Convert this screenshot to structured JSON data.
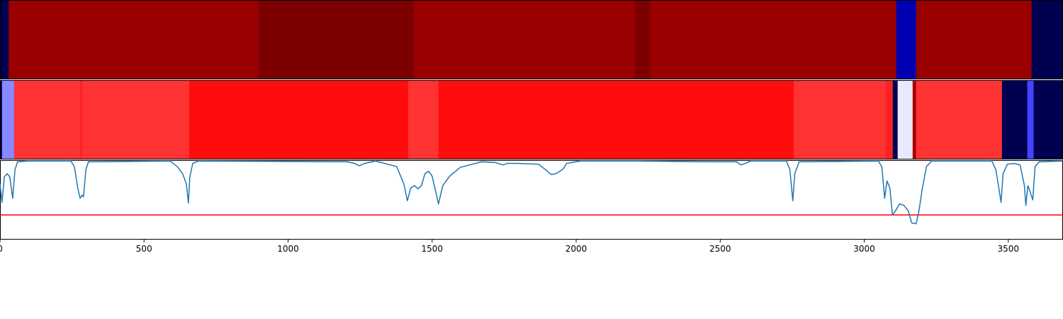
{
  "chart_data": [
    {
      "type": "strip",
      "xlim": [
        0,
        3690
      ],
      "bins": [
        0,
        30,
        898,
        1436,
        2204,
        2258,
        3111,
        3180,
        3581,
        3690
      ],
      "colors": [
        "#000050",
        "#9a0000",
        "#7c0000",
        "#9a0000",
        "#7c0000",
        "#9a0000",
        "#0000b0",
        "#9a0000",
        "#000050"
      ]
    },
    {
      "type": "strip",
      "xlim": [
        0,
        3690
      ],
      "bins": [
        0,
        7,
        49,
        278,
        285,
        657,
        1417,
        1522,
        2755,
        3074,
        3099,
        3116,
        3168,
        3180,
        3478,
        3566,
        3588,
        3690
      ],
      "colors": [
        "#000050",
        "#8888ff",
        "#ff3333",
        "#ff2222",
        "#ff3333",
        "#ff0d0d",
        "#ff3333",
        "#ff0d0d",
        "#ff3333",
        "#ff2222",
        "#000050",
        "#e8e8ff",
        "#aa0000",
        "#ff3333",
        "#000050",
        "#4444ff",
        "#000050"
      ]
    },
    {
      "type": "line",
      "xlim": [
        0,
        3690
      ],
      "ylim": [
        0,
        1
      ],
      "xticks": [
        0,
        500,
        1000,
        1500,
        2000,
        2500,
        3000,
        3500
      ],
      "color": "#1f77b4",
      "hline": 0.31,
      "hline_color": "#ff0000",
      "x": [
        0,
        7,
        15,
        25,
        34,
        44,
        52,
        61,
        98,
        246,
        258,
        270,
        278,
        285,
        290,
        298,
        307,
        590,
        615,
        634,
        647,
        654,
        659,
        669,
        689,
        1205,
        1230,
        1247,
        1266,
        1303,
        1377,
        1402,
        1414,
        1426,
        1439,
        1451,
        1463,
        1475,
        1488,
        1500,
        1512,
        1522,
        1537,
        1561,
        1598,
        1672,
        1721,
        1746,
        1761,
        1795,
        1869,
        1894,
        1913,
        1930,
        1955,
        1967,
        2016,
        2213,
        2459,
        2557,
        2572,
        2587,
        2607,
        2730,
        2742,
        2752,
        2759,
        2774,
        3049,
        3061,
        3071,
        3079,
        3089,
        3098,
        3108,
        3123,
        3138,
        3153,
        3165,
        3180,
        3189,
        3202,
        3216,
        3234,
        3443,
        3457,
        3475,
        3482,
        3497,
        3521,
        3541,
        3556,
        3561,
        3568,
        3575,
        3585,
        3593,
        3607,
        3689
      ],
      "values": [
        0.7,
        0.47,
        0.79,
        0.83,
        0.79,
        0.52,
        0.88,
        0.98,
        0.99,
        0.99,
        0.92,
        0.65,
        0.52,
        0.56,
        0.54,
        0.88,
        0.98,
        0.99,
        0.92,
        0.83,
        0.7,
        0.46,
        0.79,
        0.96,
        0.99,
        0.98,
        0.96,
        0.93,
        0.96,
        0.99,
        0.92,
        0.7,
        0.49,
        0.65,
        0.68,
        0.64,
        0.68,
        0.83,
        0.86,
        0.8,
        0.61,
        0.45,
        0.68,
        0.8,
        0.91,
        0.98,
        0.97,
        0.94,
        0.96,
        0.96,
        0.95,
        0.88,
        0.82,
        0.83,
        0.89,
        0.96,
        0.99,
        0.99,
        0.98,
        0.98,
        0.94,
        0.96,
        0.99,
        0.99,
        0.88,
        0.49,
        0.83,
        0.98,
        0.99,
        0.92,
        0.52,
        0.74,
        0.65,
        0.31,
        0.36,
        0.45,
        0.43,
        0.36,
        0.21,
        0.2,
        0.34,
        0.65,
        0.92,
        0.99,
        0.99,
        0.88,
        0.47,
        0.83,
        0.95,
        0.96,
        0.94,
        0.68,
        0.43,
        0.68,
        0.61,
        0.5,
        0.92,
        0.98,
        0.99
      ]
    }
  ]
}
